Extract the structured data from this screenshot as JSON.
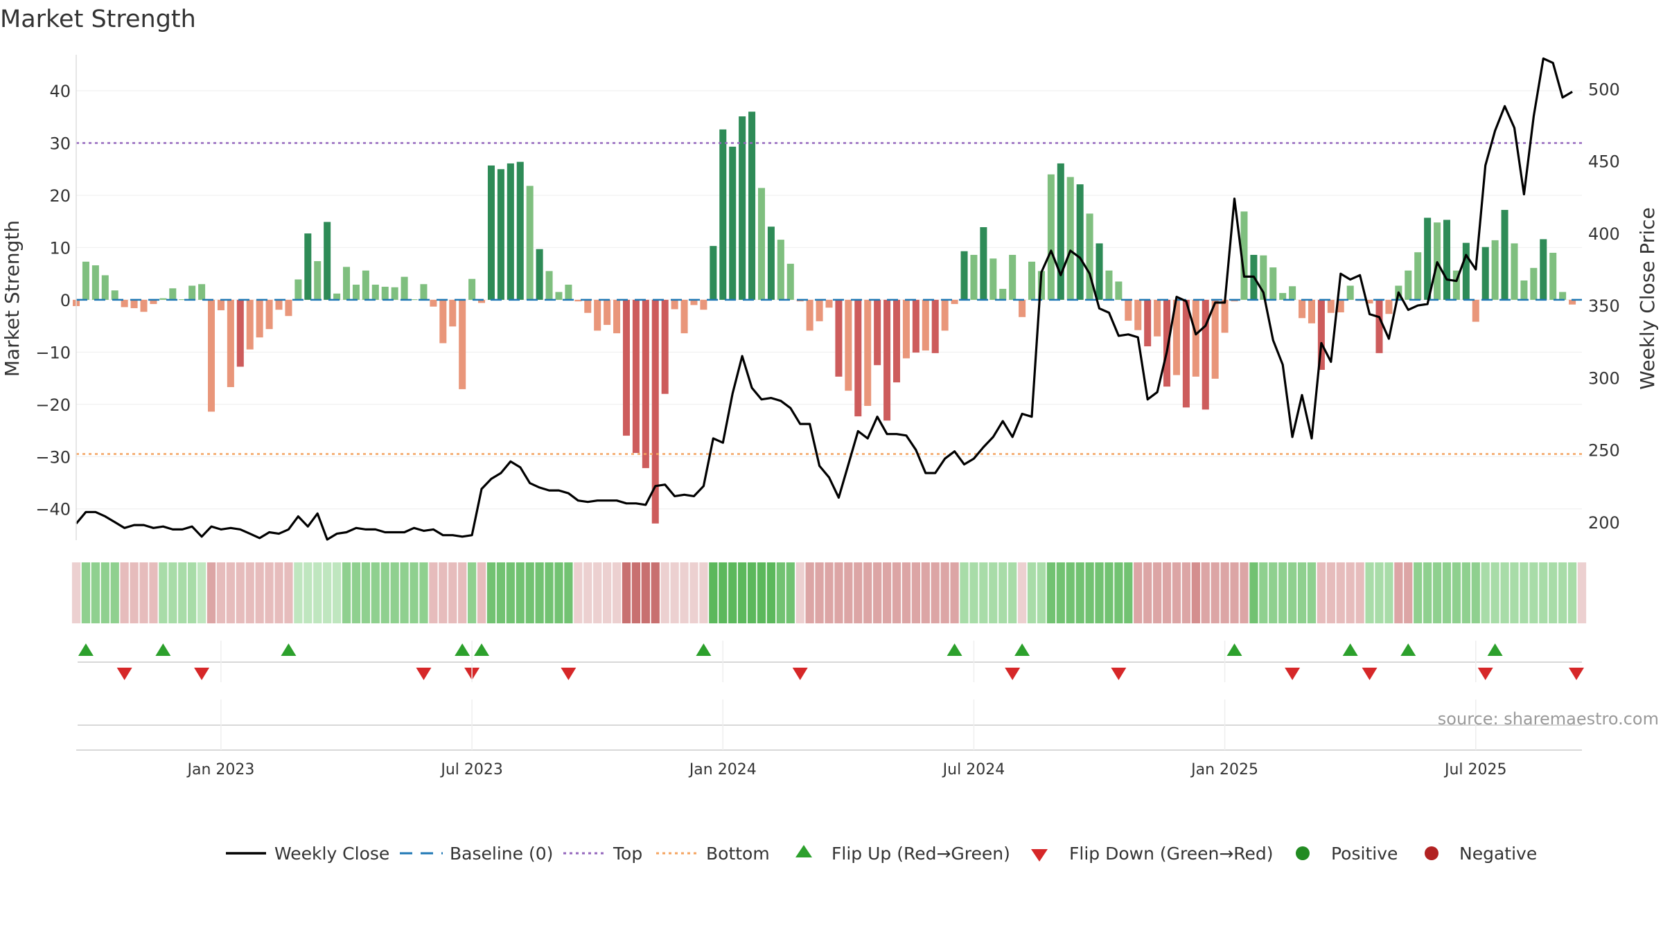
{
  "title": "Market Strength",
  "source_text": "source: sharemaestro.com",
  "colors": {
    "strong_pos": "#2e8b57",
    "weak_pos": "#7fbf7f",
    "strong_neg": "#cd5c5c",
    "weak_neg": "#e9967a",
    "line": "#000000",
    "baseline": "#1f77b4",
    "top": "#9467bd",
    "bottom": "#f4a460",
    "flip_up": "#2ca02c",
    "flip_down": "#d62728",
    "positive": "#228b22",
    "negative": "#b22222"
  },
  "chart_data": {
    "type": "bar",
    "title": "Market Strength",
    "ylabel": "Market Strength",
    "y2label": "Weekly Close Price",
    "ylim": [
      -46,
      46.5
    ],
    "y2lim": [
      187.5,
      522.2
    ],
    "yticks": [
      -40,
      -30,
      -20,
      -10,
      0,
      10,
      20,
      30,
      40
    ],
    "yticklabels": [
      "−40",
      "−30",
      "−20",
      "−10",
      "0",
      "10",
      "20",
      "30",
      "40"
    ],
    "y2ticks": [
      200,
      250,
      300,
      350,
      400,
      450,
      500
    ],
    "y2ticklabels": [
      "200",
      "250",
      "300",
      "350",
      "400",
      "450",
      "500"
    ],
    "x_domain": [
      0,
      156
    ],
    "xticks": [
      15,
      41,
      67,
      93,
      119,
      145
    ],
    "xticklabels": [
      "Jan 2023",
      "Jul 2023",
      "Jan 2024",
      "Jul 2024",
      "Jan 2025",
      "Jul 2025"
    ],
    "top_line": 30,
    "bottom_line": -29.5,
    "strength": [
      -1.2,
      7.3,
      6.6,
      4.7,
      1.8,
      -1.4,
      -1.6,
      -2.3,
      -0.8,
      0.3,
      2.2,
      0.1,
      2.7,
      3.0,
      -21.4,
      -2.0,
      -16.7,
      -12.8,
      -9.5,
      -7.2,
      -5.6,
      -1.9,
      -3.1,
      3.9,
      12.7,
      7.4,
      14.9,
      1.2,
      6.3,
      2.9,
      5.6,
      2.9,
      2.5,
      2.4,
      4.4,
      0.1,
      3.0,
      -1.3,
      -8.3,
      -5.1,
      -17.1,
      4.0,
      -0.6,
      25.7,
      25.0,
      26.1,
      26.4,
      21.8,
      9.7,
      5.5,
      1.5,
      2.9,
      -0.3,
      -2.5,
      -5.9,
      -4.8,
      -6.4,
      -26.0,
      -29.3,
      -32.2,
      -42.8,
      -18.0,
      -1.8,
      -6.4,
      -1.0,
      -1.9,
      10.3,
      32.6,
      29.3,
      35.1,
      36.0,
      21.4,
      14.0,
      11.5,
      6.9,
      -0.3,
      -5.9,
      -4.1,
      -1.5,
      -14.7,
      -17.4,
      -22.3,
      -20.3,
      -12.5,
      -23.1,
      -15.8,
      -11.2,
      -10.1,
      -9.7,
      -10.2,
      -5.9,
      -0.8,
      9.3,
      8.6,
      13.9,
      7.9,
      2.1,
      8.6,
      -3.3,
      7.3,
      5.5,
      24.0,
      26.1,
      23.5,
      22.1,
      16.5,
      10.8,
      5.6,
      3.5,
      -4.0,
      -5.8,
      -8.9,
      -7.0,
      -16.6,
      -14.4,
      -20.6,
      -14.7,
      -21.0,
      -15.1,
      -6.3,
      -0.3,
      16.9,
      8.6,
      8.5,
      6.2,
      1.3,
      2.6,
      -3.5,
      -4.5,
      -13.4,
      -2.5,
      -2.4,
      2.7,
      -0.2,
      -0.7,
      -10.2,
      -2.7,
      2.7,
      5.6,
      9.1,
      15.7,
      14.8,
      15.3,
      5.6,
      10.9,
      -4.2,
      10.1,
      11.4,
      17.2,
      10.8,
      3.7,
      6.1,
      11.6,
      9.0,
      1.5,
      -0.9
    ],
    "close": [
      199,
      207,
      207,
      204,
      200,
      196,
      198,
      198,
      196,
      197,
      195,
      195,
      197,
      190,
      197,
      195,
      196,
      195,
      192,
      189,
      193,
      192,
      195,
      204,
      197,
      206,
      188,
      192,
      193,
      196,
      195,
      195,
      193,
      193,
      193,
      196,
      194,
      195,
      191,
      191,
      190,
      191,
      223,
      230,
      234,
      242,
      238,
      227,
      224,
      222,
      222,
      220,
      215,
      214,
      215,
      215,
      215,
      213,
      213,
      212,
      225,
      226,
      218,
      219,
      218,
      225,
      258,
      255,
      289,
      315,
      293,
      285,
      286,
      284,
      279,
      268,
      268,
      239,
      231,
      217,
      240,
      263,
      258,
      273,
      261,
      261,
      260,
      250,
      234,
      234,
      244,
      249,
      240,
      244,
      252,
      259,
      270,
      259,
      275,
      273,
      373,
      388,
      371,
      388,
      383,
      372,
      348,
      345,
      329,
      330,
      328,
      285,
      290,
      318,
      356,
      353,
      330,
      336,
      352,
      352,
      424,
      370,
      370,
      359,
      326,
      309,
      259,
      288,
      258,
      324,
      311,
      372,
      368,
      371,
      344,
      342,
      327,
      359,
      347,
      350,
      351,
      380,
      368,
      367,
      385,
      375,
      447,
      471,
      488,
      473,
      427,
      481,
      521,
      518,
      494,
      498
    ],
    "strip": [
      8,
      3,
      3,
      3,
      3,
      9,
      9,
      9,
      9,
      4,
      4,
      4,
      4,
      5,
      10,
      9,
      9,
      9,
      9,
      9,
      9,
      9,
      9,
      5,
      5,
      5,
      5,
      5,
      3,
      3,
      3,
      3,
      3,
      3,
      3,
      3,
      3,
      9,
      9,
      9,
      9,
      3,
      9,
      2,
      2,
      2,
      2,
      2,
      2,
      2,
      2,
      2,
      8,
      8,
      8,
      8,
      8,
      12,
      12,
      12,
      12,
      8,
      8,
      8,
      8,
      8,
      1,
      1,
      1,
      1,
      1,
      1,
      1,
      2,
      2,
      8,
      10,
      10,
      10,
      10,
      10,
      10,
      10,
      10,
      10,
      10,
      10,
      10,
      10,
      10,
      10,
      10,
      4,
      4,
      4,
      4,
      4,
      4,
      8,
      4,
      4,
      2,
      2,
      2,
      2,
      2,
      2,
      2,
      2,
      2,
      10,
      10,
      10,
      10,
      10,
      10,
      11,
      10,
      10,
      10,
      10,
      10,
      2,
      3,
      3,
      3,
      3,
      3,
      3,
      9,
      9,
      9,
      9,
      9,
      4,
      4,
      4,
      10,
      10,
      3,
      3,
      3,
      3,
      3,
      3,
      3,
      4,
      4,
      4,
      4,
      4,
      4,
      4,
      4,
      4,
      4,
      8
    ],
    "flip_up": [
      1,
      9,
      22,
      40,
      42,
      65,
      91,
      98,
      120,
      132,
      138,
      147
    ],
    "flip_down": [
      5,
      13,
      36,
      41,
      51,
      75,
      97,
      108,
      126,
      134,
      146,
      157
    ],
    "legend": [
      "Weekly Close",
      "Baseline (0)",
      "Top",
      "Bottom",
      "Flip Up (Red→Green)",
      "Flip Down (Green→Red)",
      "Positive",
      "Negative"
    ]
  }
}
